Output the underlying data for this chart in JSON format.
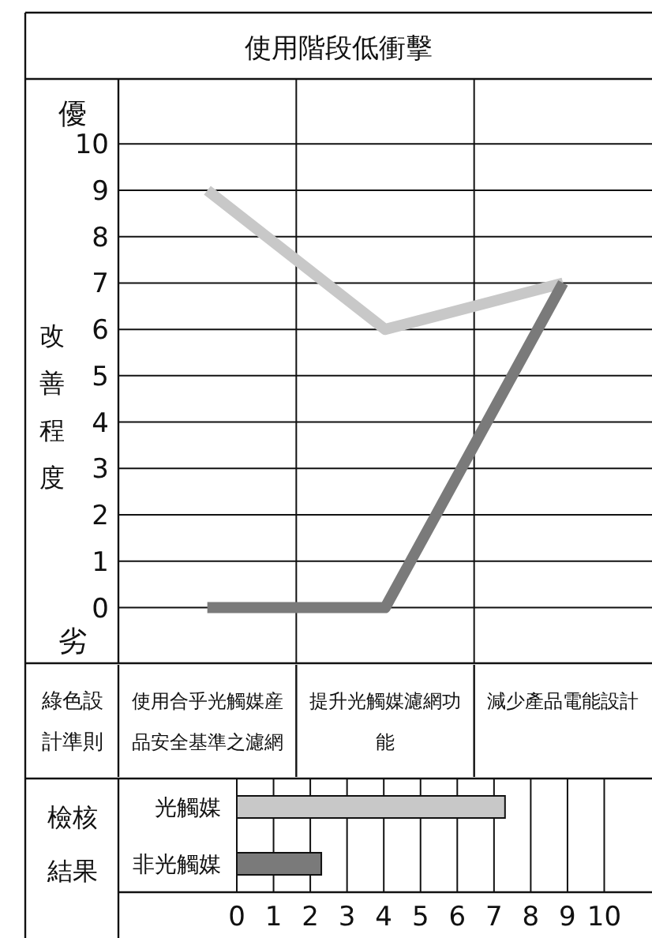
{
  "chart_data": [
    {
      "type": "line",
      "title": "使用階段低衝擊",
      "xlabel": "綠色設計準則",
      "ylabel": "改善程度",
      "annotations": [
        "優",
        "劣"
      ],
      "categories": [
        "使用合乎光觸媒産品安全基準之濾網",
        "提升光觸媒濾網功能",
        "減少產品電能設計"
      ],
      "series": [
        {
          "color": "#c8c8c8",
          "values": [
            9,
            6,
            7
          ]
        },
        {
          "color": "#7a7a7a",
          "values": [
            0,
            0,
            7
          ]
        }
      ],
      "ylim": [
        -1.2,
        11.4
      ],
      "yticks": [
        0,
        1,
        2,
        3,
        4,
        5,
        6,
        7,
        8,
        9,
        10
      ],
      "grid": "y"
    },
    {
      "type": "bar",
      "orientation": "horizontal",
      "ylabel": "檢核結果",
      "categories": [
        "光觸媒",
        "非光觸媒"
      ],
      "values": [
        7.3,
        2.3
      ],
      "colors": [
        "#c8c8c8",
        "#7a7a7a"
      ],
      "xlim": [
        0,
        11.3
      ],
      "xticks": [
        0,
        1,
        2,
        3,
        4,
        5,
        6,
        7,
        8,
        9,
        10
      ],
      "grid": "x"
    }
  ]
}
